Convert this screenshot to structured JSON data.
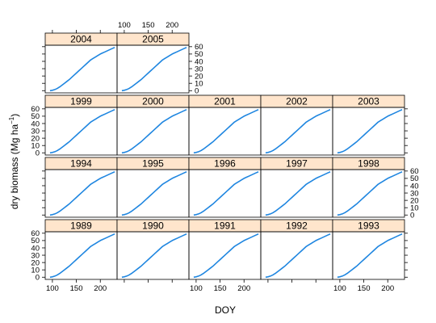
{
  "chart_data": {
    "type": "line",
    "layout": "trellis",
    "xlabel": "DOY",
    "ylabel": "dry biomass (Mg ha",
    "ylabel_superscript": "−1",
    "ylabel_close": ")",
    "xlim": [
      85,
      235
    ],
    "ylim": [
      -3,
      62
    ],
    "x_ticks": [
      100,
      150,
      200
    ],
    "y_ticks": [
      0,
      10,
      20,
      30,
      40,
      50,
      60
    ],
    "strip_color": "#ffe5cc",
    "line_color": "#1f86e0",
    "x": [
      95,
      100,
      105,
      110,
      115,
      120,
      125,
      130,
      135,
      140,
      145,
      150,
      155,
      160,
      165,
      170,
      175,
      180,
      185,
      190,
      195,
      200,
      205,
      210,
      215,
      220,
      225,
      230
    ],
    "panels": [
      {
        "year": "1989",
        "values": [
          0,
          0.5,
          1.5,
          3,
          5,
          7.5,
          10,
          12.5,
          15,
          18,
          21,
          24,
          27,
          30,
          33,
          36,
          39,
          42,
          44,
          46,
          48,
          50,
          51.5,
          53,
          54.5,
          56,
          57.5,
          59
        ]
      },
      {
        "year": "1990",
        "values": [
          0,
          0.5,
          1.5,
          3,
          5,
          7.5,
          10,
          12.5,
          15,
          18,
          21,
          24,
          27,
          30,
          33,
          36,
          39,
          42,
          44,
          46,
          48,
          50,
          51.5,
          53,
          54.5,
          56,
          57.5,
          59
        ]
      },
      {
        "year": "1991",
        "values": [
          0,
          0.5,
          1.5,
          3,
          5,
          7.5,
          10,
          12.5,
          15,
          18,
          21,
          24,
          27,
          30,
          33,
          36,
          39,
          42,
          44,
          46,
          48,
          50,
          51.5,
          53,
          54.5,
          56,
          57.5,
          59
        ]
      },
      {
        "year": "1992",
        "values": [
          0,
          0.5,
          1.5,
          3,
          5,
          7.5,
          10,
          12.5,
          15,
          18,
          21,
          24,
          27,
          30,
          33,
          36,
          39,
          42,
          44,
          46,
          48,
          50,
          51.5,
          53,
          54.5,
          56,
          57.5,
          59
        ]
      },
      {
        "year": "1993",
        "values": [
          0,
          0.5,
          1.5,
          3,
          5,
          7.5,
          10,
          12.5,
          15,
          18,
          21,
          24,
          27,
          30,
          33,
          36,
          39,
          42,
          44,
          46,
          48,
          50,
          51.5,
          53,
          54.5,
          56,
          57.5,
          59
        ]
      },
      {
        "year": "1994",
        "values": [
          0,
          0.5,
          1.5,
          3,
          5,
          7.5,
          10,
          12.5,
          15,
          18,
          21,
          24,
          27,
          30,
          33,
          36,
          39,
          42,
          44,
          46,
          48,
          50,
          51.5,
          53,
          54.5,
          56,
          57.5,
          59
        ]
      },
      {
        "year": "1995",
        "values": [
          0,
          0.5,
          1.5,
          3,
          5,
          7.5,
          10,
          12.5,
          15,
          18,
          21,
          24,
          27,
          30,
          33,
          36,
          39,
          42,
          44,
          46,
          48,
          50,
          51.5,
          53,
          54.5,
          56,
          57.5,
          59
        ]
      },
      {
        "year": "1996",
        "values": [
          0,
          0.5,
          1.5,
          3,
          5,
          7.5,
          10,
          12.5,
          15,
          18,
          21,
          24,
          27,
          30,
          33,
          36,
          39,
          42,
          44,
          46,
          48,
          50,
          51.5,
          53,
          54.5,
          56,
          57.5,
          59
        ]
      },
      {
        "year": "1997",
        "values": [
          0,
          0.5,
          1.5,
          3,
          5,
          7.5,
          10,
          12.5,
          15,
          18,
          21,
          24,
          27,
          30,
          33,
          36,
          39,
          42,
          44,
          46,
          48,
          50,
          51.5,
          53,
          54.5,
          56,
          57.5,
          59
        ]
      },
      {
        "year": "1998",
        "values": [
          0,
          0.5,
          1.5,
          3,
          5,
          7.5,
          10,
          12.5,
          15,
          18,
          21,
          24,
          27,
          30,
          33,
          36,
          39,
          42,
          44,
          46,
          48,
          50,
          51.5,
          53,
          54.5,
          56,
          57.5,
          59
        ]
      },
      {
        "year": "1999",
        "values": [
          0,
          0.5,
          1.5,
          3,
          5,
          7.5,
          10,
          12.5,
          15,
          18,
          21,
          24,
          27,
          30,
          33,
          36,
          39,
          42,
          44,
          46,
          48,
          50,
          51.5,
          53,
          54.5,
          56,
          57.5,
          59
        ]
      },
      {
        "year": "2000",
        "values": [
          0,
          0.5,
          1.5,
          3,
          5,
          7.5,
          10,
          12.5,
          15,
          18,
          21,
          24,
          27,
          30,
          33,
          36,
          39,
          42,
          44,
          46,
          48,
          50,
          51.5,
          53,
          54.5,
          56,
          57.5,
          59
        ]
      },
      {
        "year": "2001",
        "values": [
          0,
          0.5,
          1.5,
          3,
          5,
          7.5,
          10,
          12.5,
          15,
          18,
          21,
          24,
          27,
          30,
          33,
          36,
          39,
          42,
          44,
          46,
          48,
          50,
          51.5,
          53,
          54.5,
          56,
          57.5,
          59
        ]
      },
      {
        "year": "2002",
        "values": [
          0,
          0.5,
          1.5,
          3,
          5,
          7.5,
          10,
          12.5,
          15,
          18,
          21,
          24,
          27,
          30,
          33,
          36,
          39,
          42,
          44,
          46,
          48,
          50,
          51.5,
          53,
          54.5,
          56,
          57.5,
          59
        ]
      },
      {
        "year": "2003",
        "values": [
          0,
          0.5,
          1.5,
          3,
          5,
          7.5,
          10,
          12.5,
          15,
          18,
          21,
          24,
          27,
          30,
          33,
          36,
          39,
          42,
          44,
          46,
          48,
          50,
          51.5,
          53,
          54.5,
          56,
          57.5,
          59
        ]
      },
      {
        "year": "2004",
        "values": [
          0,
          0.5,
          1.5,
          3,
          5,
          7.5,
          10,
          12.5,
          15,
          18,
          21,
          24,
          27,
          30,
          33,
          36,
          39,
          42,
          44,
          46,
          48,
          50,
          51.5,
          53,
          54.5,
          56,
          57.5,
          59
        ]
      },
      {
        "year": "2005",
        "values": [
          0,
          0.5,
          1.5,
          3,
          5,
          7.5,
          10,
          12.5,
          15,
          18,
          21,
          24,
          27,
          30,
          33,
          36,
          39,
          42,
          44,
          46,
          48,
          50,
          51.5,
          53,
          54.5,
          56,
          57.5,
          59
        ]
      }
    ]
  }
}
